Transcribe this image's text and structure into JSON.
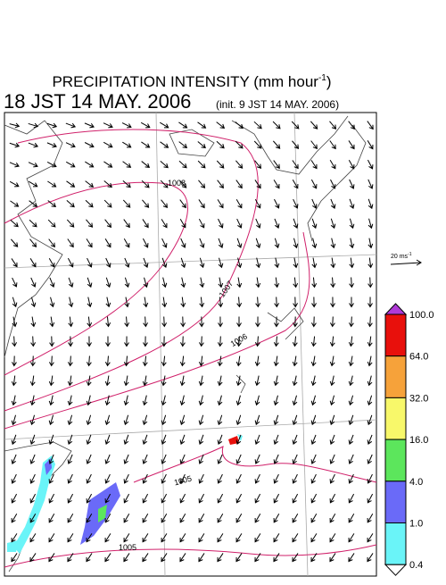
{
  "header": {
    "title": "PRECIPITATION INTENSITY (mm hour",
    "title_superscript": "-1",
    "title_close": ")",
    "valid_time": "18 JST 14 MAY. 2006",
    "init_time": "(init. 9 JST 14 MAY. 2006)"
  },
  "wind_scale": {
    "label": "20 ms",
    "superscript": "-1"
  },
  "colorbar": {
    "labels": [
      "100.0",
      "64.0",
      "32.0",
      "16.0",
      "4.0",
      "1.0",
      "0.4"
    ],
    "colors": [
      "#e8100c",
      "#f6a23a",
      "#f8f86a",
      "#5ce65c",
      "#6a6af8",
      "#6af4f8"
    ],
    "over_color": "#b03ad8",
    "under_color": "#ffffff"
  },
  "contour_labels": [
    "1008",
    "1007",
    "1006",
    "1005",
    "1005"
  ]
}
